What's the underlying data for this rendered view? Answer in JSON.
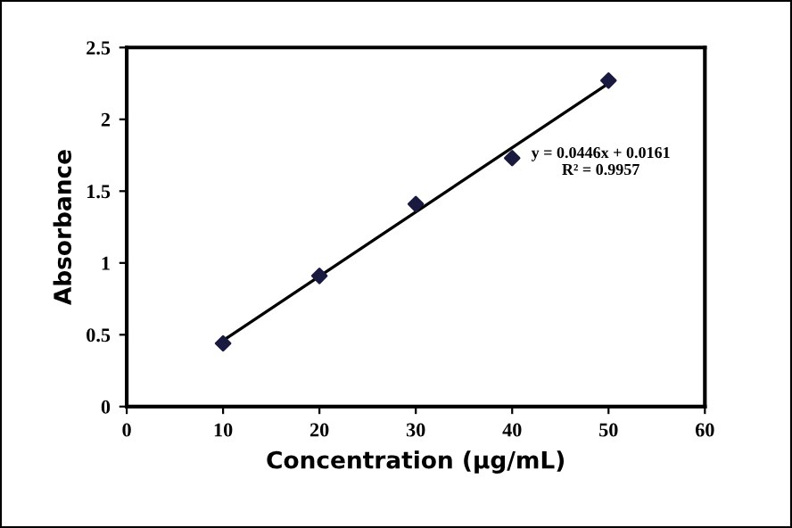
{
  "chart_data": {
    "type": "scatter",
    "xlabel": "Concentration (µg/mL)",
    "ylabel": "Absorbance",
    "x": [
      10,
      20,
      30,
      40,
      50
    ],
    "series": [
      {
        "color": "#1a1a40",
        "values": [
          0.44,
          0.91,
          1.41,
          1.73,
          2.27
        ],
        "marker": "diamond"
      },
      {
        "type": "line",
        "color": "#000000",
        "x": [
          10,
          50
        ],
        "values": [
          0.46,
          2.25
        ],
        "marker": "none",
        "line_style": "solid"
      }
    ],
    "annotations": [
      "y = 0.0446x + 0.0161\nR² = 0.9957"
    ],
    "xlim": [
      0,
      60
    ],
    "xticks": [
      0,
      10,
      20,
      30,
      40,
      50,
      60
    ],
    "ylim": [
      0,
      2.5
    ],
    "yticks": [
      0,
      0.5,
      1,
      1.5,
      2,
      2.5
    ],
    "grid": false,
    "legend": false
  }
}
